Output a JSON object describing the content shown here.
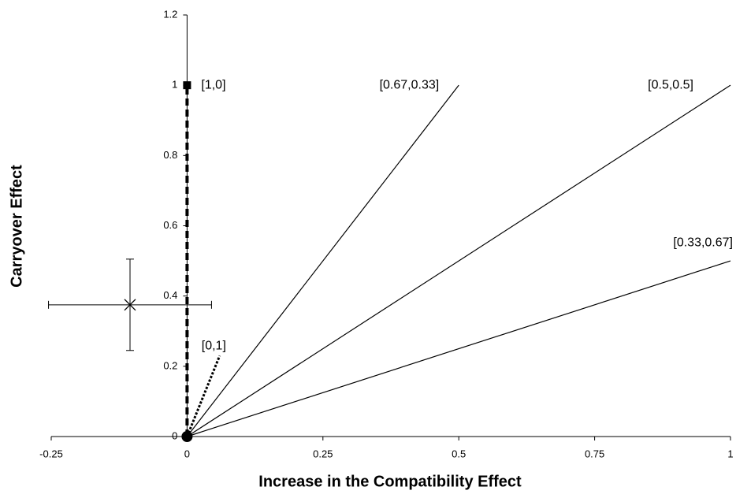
{
  "chart_data": {
    "type": "line",
    "x_label": "Increase in the Compatibility Effect",
    "y_label": "Carryover Effect",
    "xlim": [
      -0.25,
      1
    ],
    "ylim": [
      0,
      1.2
    ],
    "xticks": [
      -0.25,
      0,
      0.25,
      0.5,
      0.75,
      1
    ],
    "yticks": [
      0,
      0.2,
      0.4,
      0.6,
      0.8,
      1,
      1.2
    ],
    "series": [
      {
        "name": "[1,0]",
        "color": "#000000",
        "style": "dashed",
        "start_marker": "circle",
        "end_marker": "square",
        "x": [
          0,
          0
        ],
        "values": [
          0,
          1
        ]
      },
      {
        "name": "[0.67,0.33]",
        "color": "#000000",
        "style": "solid",
        "x": [
          0,
          0.5
        ],
        "values": [
          0,
          1
        ]
      },
      {
        "name": "[0.5,0.5]",
        "color": "#000000",
        "style": "solid",
        "x": [
          0,
          1
        ],
        "values": [
          0,
          1
        ]
      },
      {
        "name": "[0.33,0.67]",
        "color": "#000000",
        "style": "solid",
        "x": [
          0,
          1
        ],
        "values": [
          0,
          0.5
        ]
      },
      {
        "name": "[0,1]",
        "color": "#000000",
        "style": "dotted",
        "x": [
          0,
          0.06
        ],
        "values": [
          0,
          0.23
        ]
      }
    ],
    "points": [
      {
        "x": -0.105,
        "y": 0.375,
        "xerr": 0.15,
        "yerr": 0.13,
        "marker": "x"
      }
    ]
  }
}
